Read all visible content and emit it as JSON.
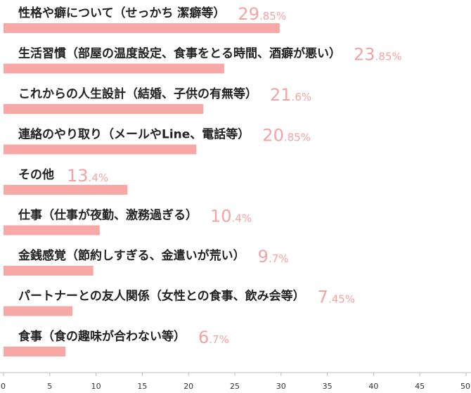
{
  "chart_data": {
    "type": "bar",
    "orientation": "horizontal",
    "title": "",
    "xlabel": "",
    "ylabel": "",
    "unit": "%",
    "xlim": [
      0,
      50
    ],
    "x_ticks": [
      0,
      5,
      10,
      15,
      20,
      25,
      30,
      35,
      40,
      45,
      50
    ],
    "grid": false,
    "bar_color": "#f9a8a8",
    "value_color": "#f4a3a3",
    "categories": [
      "性格や癖について（せっかち 潔癖等）",
      "生活習慣（部屋の温度設定、食事をとる時間、酒癖が悪い）",
      "これからの人生設計（結婚、子供の有無等）",
      "連絡のやり取り（メールやLine、電話等）",
      "その他",
      "仕事（仕事が夜勤、激務過ぎる）",
      "金銭感覚（節約しすぎる、金遣いが荒い）",
      "パートナーとの友人関係（女性との食事、飲み会等）",
      "食事（食の趣味が合わない等）"
    ],
    "values": [
      29.85,
      23.85,
      21.6,
      20.85,
      13.4,
      10.4,
      9.7,
      7.45,
      6.7
    ]
  }
}
